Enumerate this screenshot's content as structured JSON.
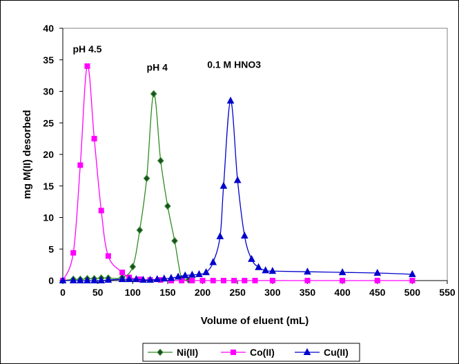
{
  "chart_data": {
    "type": "line",
    "xlabel": "Volume of eluent (mL)",
    "ylabel": "mg M(II) desorbed",
    "xlim": [
      0,
      550
    ],
    "ylim": [
      0,
      40
    ],
    "x_ticks": [
      0,
      50,
      100,
      150,
      200,
      250,
      300,
      350,
      400,
      450,
      500,
      550
    ],
    "y_ticks": [
      0,
      5,
      10,
      15,
      20,
      25,
      30,
      35,
      40
    ],
    "grid": false,
    "legend_position": "bottom",
    "annotations": [
      {
        "text": "pH 4.5",
        "x": 35,
        "y": 36.2
      },
      {
        "text": "pH 4",
        "x": 135,
        "y": 33.3
      },
      {
        "text": "0.1 M HNO3",
        "x": 245,
        "y": 33.7
      }
    ],
    "series": [
      {
        "name": "Ni(II)",
        "color": "#2e8b22",
        "marker": "diamond",
        "marker_fill": "#1f4a2a",
        "x": [
          0,
          15,
          25,
          35,
          45,
          55,
          65,
          85,
          100,
          110,
          120,
          130,
          140,
          150,
          160,
          170,
          180
        ],
        "y": [
          0,
          0.2,
          0.2,
          0.3,
          0.3,
          0.4,
          0.4,
          0.5,
          2.2,
          8.0,
          16.2,
          29.6,
          19.0,
          11.8,
          6.3,
          0.3,
          0.1
        ]
      },
      {
        "name": "Co(II)",
        "color": "#ff00ff",
        "marker": "square",
        "marker_fill": "#ff00ff",
        "x": [
          0,
          15,
          25,
          35,
          45,
          55,
          65,
          85,
          95,
          110,
          125,
          140,
          155,
          170,
          185,
          200,
          215,
          230,
          245,
          260,
          275,
          300,
          350,
          400,
          450,
          500
        ],
        "y": [
          0,
          4.4,
          18.3,
          34.0,
          22.5,
          11.1,
          3.9,
          1.3,
          0.5,
          0.2,
          0.1,
          0.1,
          0,
          0,
          0,
          0,
          0,
          0,
          0,
          0,
          0,
          0,
          0,
          0,
          0,
          0
        ]
      },
      {
        "name": "Cu(II)",
        "color": "#0000cc",
        "marker": "triangle",
        "marker_fill": "#0000cc",
        "x": [
          0,
          15,
          25,
          35,
          45,
          55,
          65,
          85,
          95,
          105,
          115,
          125,
          135,
          145,
          155,
          165,
          175,
          185,
          195,
          205,
          215,
          225,
          230,
          240,
          250,
          260,
          270,
          280,
          290,
          300,
          350,
          400,
          450,
          500
        ],
        "y": [
          0,
          0,
          0,
          0,
          0,
          0,
          0.1,
          0.2,
          0.2,
          0.2,
          0.1,
          0.1,
          0.2,
          0.3,
          0.4,
          0.6,
          0.8,
          0.9,
          1.0,
          1.3,
          2.9,
          7.0,
          15.0,
          28.5,
          15.9,
          7.1,
          3.4,
          2.1,
          1.6,
          1.5,
          1.4,
          1.3,
          1.2,
          1.0
        ]
      }
    ]
  }
}
